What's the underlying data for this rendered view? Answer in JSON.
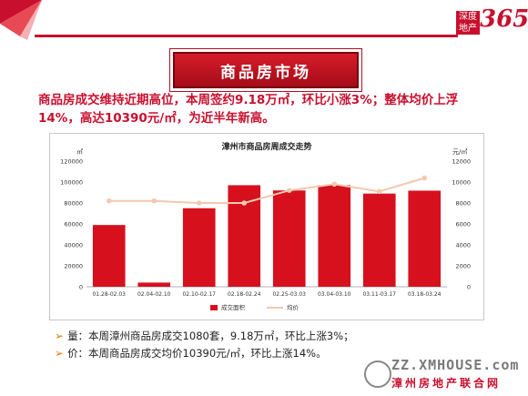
{
  "header": {
    "logo_small_text": "深度地产",
    "logo_number": "365",
    "section_title": "商品房市场"
  },
  "headline": "商品房成交维持近期高位，本周签约9.18万㎡，环比小涨3%；整体均价上浮14%，高达10390元/㎡，为近半年新高。",
  "chart_data": {
    "type": "bar",
    "title": "漳州市商品房周成交走势",
    "categories": [
      "01.28-02.03",
      "02.04-02.10",
      "02.10-02.17",
      "02.18-02.24",
      "02.25-03.03",
      "03.04-03.10",
      "03.11-03.17",
      "03.18-03.24"
    ],
    "series": [
      {
        "name": "成交面积",
        "type": "bar",
        "axis": "left",
        "values": [
          59000,
          4000,
          75000,
          97000,
          92000,
          97000,
          89000,
          91800
        ]
      },
      {
        "name": "均价",
        "type": "line",
        "axis": "right",
        "values": [
          8200,
          8200,
          8000,
          8000,
          9200,
          9800,
          9100,
          10390
        ]
      }
    ],
    "y_left": {
      "unit": "㎡",
      "range": [
        0,
        120000
      ],
      "ticks": [
        "0",
        "20000",
        "40000",
        "60000",
        "80000",
        "100000",
        "120000"
      ]
    },
    "y_right": {
      "unit": "元/㎡",
      "range": [
        0,
        12000
      ],
      "ticks": [
        "0",
        "2000",
        "4000",
        "6000",
        "8000",
        "10000",
        "12000"
      ]
    },
    "grid": false,
    "legend_position": "bottom",
    "bar_color": "#d7101e",
    "line_color": "#f2c9b0"
  },
  "bullets": [
    {
      "mark": "➢",
      "text": "量：本周漳州商品房成交1080套，9.18万㎡，环比上涨3%；"
    },
    {
      "mark": "➢",
      "text": "价：本周商品房成交均价10390元/㎡，环比上涨14%。"
    }
  ],
  "footer": {
    "url": "ZZ.XMHOUSE.com",
    "name": "漳州房地产联合网"
  },
  "colors": {
    "accent": "#c8102e"
  }
}
